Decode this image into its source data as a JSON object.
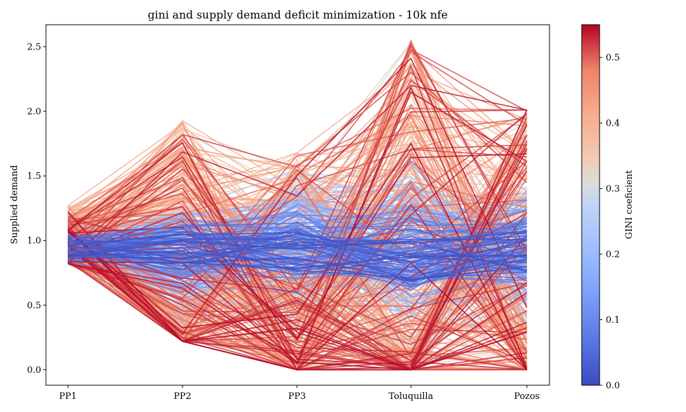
{
  "chart_data": {
    "type": "parallel-coordinates",
    "title": "gini and supply demand deficit minimization - 10k nfe",
    "ylabel": "Supplied demand",
    "xlabel": "",
    "axes": [
      "PP1",
      "PP2",
      "PP3",
      "Toluquilla",
      "Pozos"
    ],
    "ylim": [
      -0.12,
      2.67
    ],
    "yticks": [
      0.0,
      0.5,
      1.0,
      1.5,
      2.0,
      2.5
    ],
    "ytick_labels": [
      "0.0",
      "0.5",
      "1.0",
      "1.5",
      "2.0",
      "2.5"
    ],
    "grid": false,
    "colorbar": {
      "label": "GINI coeficient",
      "colormap": "coolwarm",
      "range": [
        0.0,
        0.55
      ],
      "ticks": [
        0.0,
        0.1,
        0.2,
        0.3,
        0.4,
        0.5
      ],
      "tick_labels": [
        "0.0",
        "0.1",
        "0.2",
        "0.3",
        "0.4",
        "0.5"
      ]
    },
    "series_ranges": {
      "PP1": [
        0.82,
        1.27
      ],
      "PP2": [
        0.22,
        1.93
      ],
      "PP3": [
        0.0,
        1.68
      ],
      "Toluquilla": [
        0.0,
        2.55
      ],
      "Pozos": [
        0.0,
        2.01
      ]
    },
    "sample_lines": [
      {
        "gini": 0.05,
        "values": [
          0.9,
          1.05,
          0.95,
          0.9,
          0.88
        ]
      },
      {
        "gini": 0.08,
        "values": [
          0.95,
          0.9,
          0.85,
          0.95,
          0.87
        ]
      },
      {
        "gini": 0.1,
        "values": [
          0.85,
          0.95,
          0.75,
          0.7,
          1.0
        ]
      },
      {
        "gini": 0.12,
        "values": [
          0.92,
          0.8,
          1.05,
          1.2,
          1.1
        ]
      },
      {
        "gini": 0.15,
        "values": [
          1.0,
          1.1,
          0.9,
          1.3,
          0.8
        ]
      },
      {
        "gini": 0.18,
        "values": [
          0.88,
          0.7,
          1.2,
          1.6,
          0.6
        ]
      },
      {
        "gini": 0.2,
        "values": [
          1.05,
          1.2,
          0.7,
          1.0,
          1.25
        ]
      },
      {
        "gini": 0.25,
        "values": [
          1.1,
          0.6,
          1.3,
          1.75,
          0.5
        ]
      },
      {
        "gini": 0.3,
        "values": [
          1.2,
          0.4,
          1.6,
          0.3,
          1.4
        ]
      },
      {
        "gini": 0.33,
        "values": [
          0.83,
          0.3,
          1.45,
          0.1,
          1.5
        ]
      },
      {
        "gini": 0.36,
        "values": [
          1.25,
          1.5,
          0.5,
          2.0,
          0.3
        ]
      },
      {
        "gini": 0.4,
        "values": [
          1.27,
          1.9,
          0.3,
          2.3,
          0.1
        ]
      },
      {
        "gini": 0.43,
        "values": [
          1.15,
          1.7,
          0.2,
          2.5,
          0.0
        ]
      },
      {
        "gini": 0.46,
        "values": [
          0.95,
          0.35,
          0.15,
          2.55,
          0.2
        ]
      },
      {
        "gini": 0.5,
        "values": [
          0.85,
          0.25,
          0.05,
          0.05,
          1.9
        ]
      },
      {
        "gini": 0.53,
        "values": [
          0.9,
          0.5,
          0.0,
          0.02,
          2.01
        ]
      }
    ]
  }
}
